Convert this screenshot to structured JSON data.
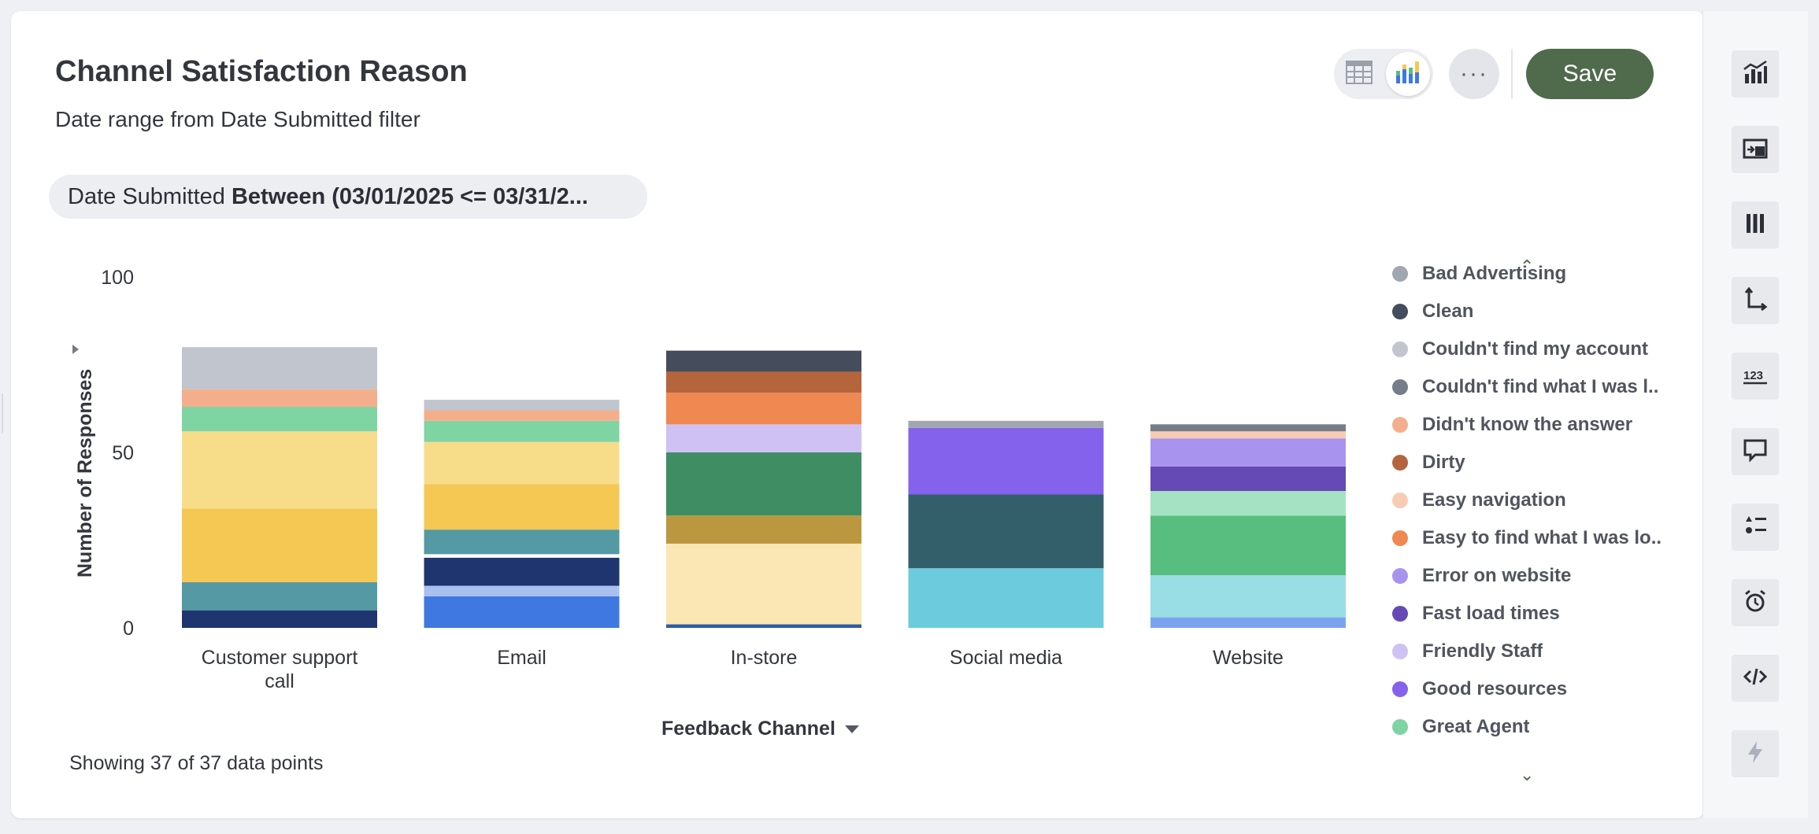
{
  "header": {
    "title": "Channel Satisfaction Reason",
    "subtitle": "Date range from Date Submitted filter",
    "save_label": "Save",
    "more_label": "···"
  },
  "filter": {
    "field": "Date Submitted",
    "condition": "Between (03/01/2025 <= 03/31/2..."
  },
  "footer": {
    "showing": "Showing 37 of 37 data points"
  },
  "colors": {
    "accent": "#4f6b4c"
  },
  "right_rail": {
    "icons": [
      "chart-type-icon",
      "move-to-dashboard-icon",
      "columns-icon",
      "axes-icon",
      "number-format-icon",
      "comment-icon",
      "list-options-icon",
      "alert-timer-icon",
      "embed-code-icon",
      "lightning-icon"
    ]
  },
  "legend": {
    "items": [
      {
        "label": "Bad Advertising",
        "color": "#a1a7b1"
      },
      {
        "label": "Clean",
        "color": "#454d5c"
      },
      {
        "label": "Couldn't find my account",
        "color": "#c0c5ce"
      },
      {
        "label": "Couldn't find what I was l..",
        "color": "#767d88"
      },
      {
        "label": "Didn't know the answer",
        "color": "#f4ae8c"
      },
      {
        "label": "Dirty",
        "color": "#b5643c"
      },
      {
        "label": "Easy navigation",
        "color": "#f8ccb4"
      },
      {
        "label": "Easy to find what I was lo..",
        "color": "#ef8851"
      },
      {
        "label": "Error on website",
        "color": "#a894ee"
      },
      {
        "label": "Fast load times",
        "color": "#6549b4"
      },
      {
        "label": "Friendly Staff",
        "color": "#cfc1f4"
      },
      {
        "label": "Good resources",
        "color": "#8462ec"
      },
      {
        "label": "Great Agent",
        "color": "#7fd4a4"
      }
    ]
  },
  "chart_data": {
    "type": "bar",
    "stacked": true,
    "xlabel": "Feedback Channel",
    "ylabel": "Number of Responses",
    "ylim": [
      0,
      100
    ],
    "yticks": [
      0,
      50,
      100
    ],
    "categories": [
      "Customer support call",
      "Email",
      "In-store",
      "Social media",
      "Website"
    ],
    "bars": [
      {
        "category": "Customer support call",
        "segments": [
          {
            "value": 5,
            "color": "#1f3570"
          },
          {
            "value": 8,
            "color": "#5499a3"
          },
          {
            "value": 21,
            "color": "#f5c854"
          },
          {
            "value": 22,
            "color": "#f7dc8a"
          },
          {
            "value": 7,
            "color": "#7fd4a4"
          },
          {
            "value": 5,
            "color": "#f4ae8c"
          },
          {
            "value": 12,
            "color": "#c0c5ce"
          }
        ]
      },
      {
        "category": "Email",
        "segments": [
          {
            "value": 9,
            "color": "#3f78e0"
          },
          {
            "value": 3,
            "color": "#a8bff0"
          },
          {
            "value": 8,
            "color": "#1f3570"
          },
          {
            "value": 1,
            "color": "#ffffff"
          },
          {
            "value": 7,
            "color": "#5499a3"
          },
          {
            "value": 13,
            "color": "#f5c854"
          },
          {
            "value": 12,
            "color": "#f7dc8a"
          },
          {
            "value": 6,
            "color": "#7fd4a4"
          },
          {
            "value": 3,
            "color": "#f4ae8c"
          },
          {
            "value": 3,
            "color": "#c0c5ce"
          }
        ]
      },
      {
        "category": "In-store",
        "segments": [
          {
            "value": 1,
            "color": "#2e5aa8"
          },
          {
            "value": 23,
            "color": "#fbe7b4"
          },
          {
            "value": 8,
            "color": "#bb9840"
          },
          {
            "value": 18,
            "color": "#3f8e63"
          },
          {
            "value": 8,
            "color": "#cfc1f4"
          },
          {
            "value": 9,
            "color": "#ef8851"
          },
          {
            "value": 6,
            "color": "#b5643c"
          },
          {
            "value": 6,
            "color": "#454d5c"
          }
        ]
      },
      {
        "category": "Social media",
        "segments": [
          {
            "value": 17,
            "color": "#6ccbdc"
          },
          {
            "value": 21,
            "color": "#335f6a"
          },
          {
            "value": 19,
            "color": "#8462ec"
          },
          {
            "value": 2,
            "color": "#a1a7b1"
          }
        ]
      },
      {
        "category": "Website",
        "segments": [
          {
            "value": 3,
            "color": "#7aa3ef"
          },
          {
            "value": 12,
            "color": "#99dde5"
          },
          {
            "value": 17,
            "color": "#58be7f"
          },
          {
            "value": 7,
            "color": "#a5e1c3"
          },
          {
            "value": 7,
            "color": "#6549b4"
          },
          {
            "value": 8,
            "color": "#a894ee"
          },
          {
            "value": 2,
            "color": "#f8ccb4"
          },
          {
            "value": 2,
            "color": "#767d88"
          }
        ]
      }
    ]
  }
}
